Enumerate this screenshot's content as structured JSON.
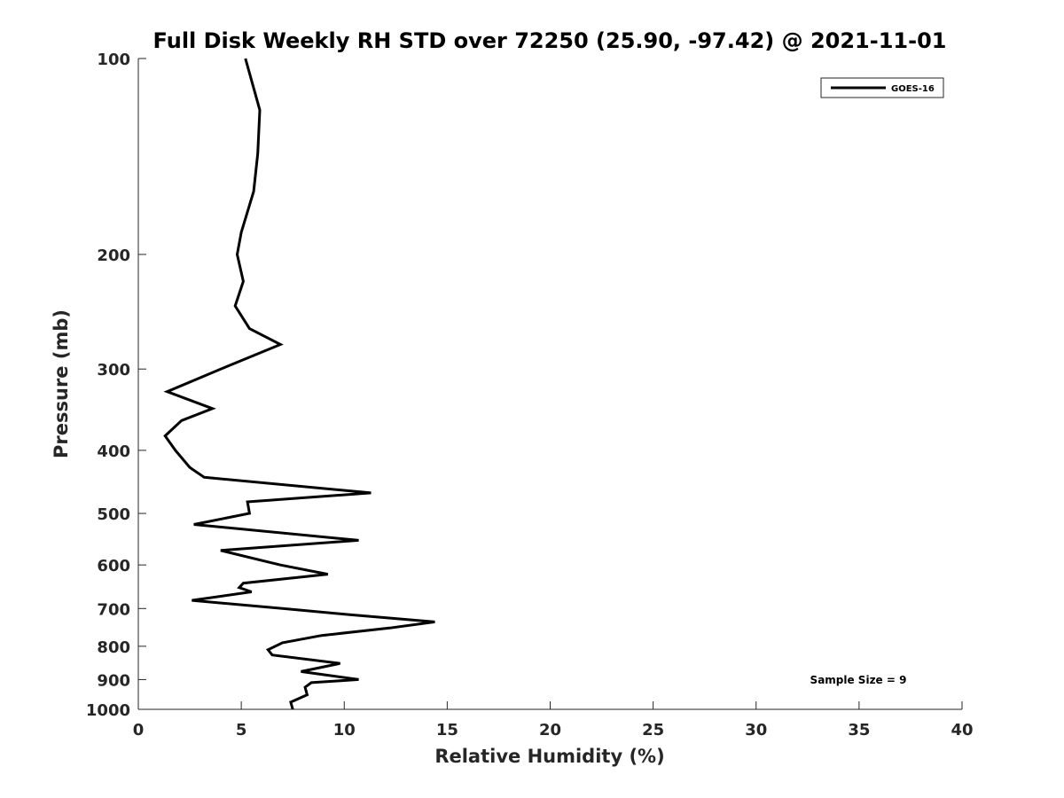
{
  "chart_data": {
    "type": "line",
    "title": "Full Disk Weekly RH STD over 72250 (25.90, -97.42) @ 2021-11-01",
    "xlabel": "Relative Humidity (%)",
    "ylabel": "Pressure (mb)",
    "xlim": [
      0,
      40
    ],
    "ylim": [
      100,
      1000
    ],
    "y_scale": "log",
    "y_reversed": true,
    "grid": false,
    "legend_position": "top-right",
    "x_ticks": [
      0,
      5,
      10,
      15,
      20,
      25,
      30,
      35,
      40
    ],
    "y_ticks": [
      100,
      200,
      300,
      400,
      500,
      600,
      700,
      800,
      900,
      1000
    ],
    "annotation": "Sample Size = 9",
    "series": [
      {
        "name": "GOES-16",
        "color": "#000000",
        "points": [
          [
            7.5,
            1000
          ],
          [
            7.4,
            975
          ],
          [
            8.2,
            950
          ],
          [
            8.1,
            925
          ],
          [
            8.4,
            910
          ],
          [
            10.7,
            900
          ],
          [
            7.9,
            875
          ],
          [
            9.8,
            850
          ],
          [
            6.5,
            825
          ],
          [
            6.3,
            810
          ],
          [
            7.0,
            790
          ],
          [
            8.9,
            770
          ],
          [
            12.2,
            750
          ],
          [
            14.4,
            734
          ],
          [
            10.2,
            715
          ],
          [
            7.0,
            700
          ],
          [
            2.6,
            680
          ],
          [
            5.5,
            660
          ],
          [
            4.9,
            650
          ],
          [
            5.1,
            640
          ],
          [
            9.2,
            620
          ],
          [
            6.9,
            600
          ],
          [
            4.0,
            570
          ],
          [
            10.7,
            550
          ],
          [
            2.7,
            520
          ],
          [
            5.4,
            500
          ],
          [
            5.3,
            480
          ],
          [
            11.3,
            465
          ],
          [
            3.2,
            440
          ],
          [
            2.5,
            425
          ],
          [
            1.8,
            400
          ],
          [
            1.3,
            380
          ],
          [
            2.1,
            360
          ],
          [
            3.6,
            345
          ],
          [
            1.4,
            325
          ],
          [
            4.0,
            300
          ],
          [
            6.9,
            275
          ],
          [
            5.4,
            260
          ],
          [
            4.7,
            240
          ],
          [
            5.1,
            220
          ],
          [
            4.8,
            200
          ],
          [
            5.0,
            185
          ],
          [
            5.6,
            160
          ],
          [
            5.8,
            140
          ],
          [
            5.9,
            120
          ],
          [
            5.2,
            100
          ]
        ]
      }
    ]
  }
}
